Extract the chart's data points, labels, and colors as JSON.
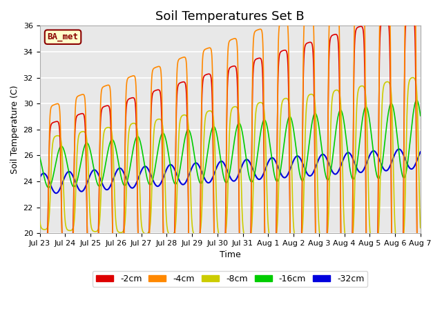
{
  "title": "Soil Temperatures Set B",
  "xlabel": "Time",
  "ylabel": "Soil Temperature (C)",
  "ylim": [
    20,
    36
  ],
  "yticks": [
    20,
    22,
    24,
    26,
    28,
    30,
    32,
    34,
    36
  ],
  "x_tick_labels": [
    "Jul 23",
    "Jul 24",
    "Jul 25",
    "Jul 26",
    "Jul 27",
    "Jul 28",
    "Jul 29",
    "Jul 30",
    "Jul 31",
    "Aug 1",
    "Aug 2",
    "Aug 3",
    "Aug 4",
    "Aug 5",
    "Aug 6",
    "Aug 7"
  ],
  "series_colors": [
    "#dd0000",
    "#ff8800",
    "#cccc00",
    "#00cc00",
    "#0000dd"
  ],
  "series_labels": [
    "-2cm",
    "-4cm",
    "-8cm",
    "-16cm",
    "-32cm"
  ],
  "annotation_text": "BA_met",
  "bg_color": "#e8e8e8",
  "title_fontsize": 13,
  "axis_fontsize": 9,
  "tick_fontsize": 8
}
